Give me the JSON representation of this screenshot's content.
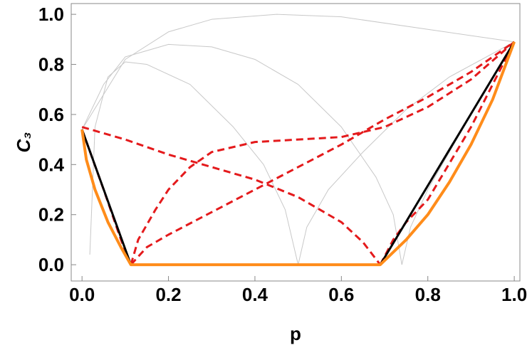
{
  "chart_data": {
    "type": "line",
    "xlabel": "p",
    "ylabel": "C₃",
    "xlim": [
      -0.025,
      1.013
    ],
    "ylim": [
      -0.065,
      1.043
    ],
    "xticks": [
      {
        "value": 0,
        "label": "0.0"
      },
      0.2,
      0.4,
      0.6,
      0.8,
      {
        "value": 1,
        "label": "1.0"
      }
    ],
    "yticks": [
      {
        "value": 0,
        "label": "0.0"
      },
      0.2,
      0.4,
      0.6,
      0.8,
      {
        "value": 1,
        "label": "1.0"
      }
    ],
    "series": [
      {
        "color": "#c8c8c8",
        "width": 1,
        "style": "solid",
        "x": [
          0.018,
          0.03,
          0.06,
          0.1,
          0.15,
          0.25,
          0.35,
          0.42,
          0.47,
          0.5
        ],
        "values": [
          0.04,
          0.55,
          0.75,
          0.81,
          0.8,
          0.72,
          0.55,
          0.4,
          0.22,
          0
        ]
      },
      {
        "color": "#c8c8c8",
        "width": 1,
        "style": "solid",
        "x": [
          0,
          0.05,
          0.1,
          0.2,
          0.3,
          0.4,
          0.5,
          0.6,
          0.68,
          0.72,
          0.74
        ],
        "values": [
          0.54,
          0.72,
          0.83,
          0.88,
          0.87,
          0.82,
          0.72,
          0.55,
          0.35,
          0.2,
          0
        ]
      },
      {
        "color": "#c8c8c8",
        "width": 1,
        "style": "solid",
        "x": [
          0,
          0.1,
          0.2,
          0.3,
          0.45,
          0.6,
          0.8,
          1
        ],
        "values": [
          0.54,
          0.82,
          0.93,
          0.98,
          1.0,
          0.99,
          0.94,
          0.89
        ]
      },
      {
        "color": "#c8c8c8",
        "width": 1,
        "style": "solid",
        "x": [
          0.5,
          0.52,
          0.57,
          0.65,
          0.75,
          0.85,
          1
        ],
        "values": [
          0,
          0.15,
          0.3,
          0.45,
          0.62,
          0.75,
          0.89
        ]
      },
      {
        "color": "#c8c8c8",
        "width": 1,
        "style": "solid",
        "x": [
          0.74,
          0.76,
          0.8,
          0.9,
          1
        ],
        "values": [
          0,
          0.15,
          0.3,
          0.6,
          0.89
        ]
      },
      {
        "color": "#e41a1c",
        "width": 3,
        "style": "dashed",
        "x": [
          0,
          0.1,
          0.2,
          0.3,
          0.4,
          0.5,
          0.6,
          0.65,
          0.69
        ],
        "values": [
          0.55,
          0.5,
          0.44,
          0.39,
          0.34,
          0.27,
          0.17,
          0.09,
          0
        ]
      },
      {
        "color": "#e41a1c",
        "width": 3,
        "style": "dashed",
        "x": [
          0,
          0.05,
          0.09,
          0.113
        ],
        "values": [
          0.54,
          0.3,
          0.1,
          0
        ]
      },
      {
        "color": "#e41a1c",
        "width": 3,
        "style": "dashed",
        "x": [
          0.113,
          0.13,
          0.17,
          0.2,
          0.25,
          0.3,
          0.4,
          0.5,
          0.6,
          0.7,
          0.8,
          0.9,
          1
        ],
        "values": [
          0,
          0.1,
          0.22,
          0.3,
          0.39,
          0.45,
          0.49,
          0.5,
          0.51,
          0.55,
          0.63,
          0.74,
          0.89
        ]
      },
      {
        "color": "#e41a1c",
        "width": 3,
        "style": "dashed",
        "x": [
          0.113,
          0.15,
          0.2,
          0.3,
          0.4,
          0.5,
          0.6,
          0.7,
          0.8,
          0.9,
          1
        ],
        "values": [
          0,
          0.07,
          0.12,
          0.21,
          0.3,
          0.39,
          0.48,
          0.58,
          0.67,
          0.77,
          0.89
        ]
      },
      {
        "color": "#e41a1c",
        "width": 3,
        "style": "dashed",
        "x": [
          0.69,
          0.72,
          0.75,
          0.8,
          0.9,
          1
        ],
        "values": [
          0,
          0.1,
          0.17,
          0.26,
          0.55,
          0.89
        ]
      },
      {
        "color": "#000000",
        "width": 3,
        "style": "solid",
        "x": [
          0,
          0.113,
          0.69,
          1
        ],
        "values": [
          0.54,
          0,
          0,
          0.89
        ]
      },
      {
        "color": "#ff8c1a",
        "width": 4,
        "style": "solid",
        "x": [
          0,
          0.01,
          0.03,
          0.06,
          0.09,
          0.113,
          0.69,
          0.75,
          0.8,
          0.85,
          0.9,
          0.95,
          1
        ],
        "values": [
          0.54,
          0.42,
          0.3,
          0.17,
          0.07,
          0,
          0,
          0.1,
          0.2,
          0.33,
          0.48,
          0.66,
          0.89
        ]
      }
    ]
  }
}
